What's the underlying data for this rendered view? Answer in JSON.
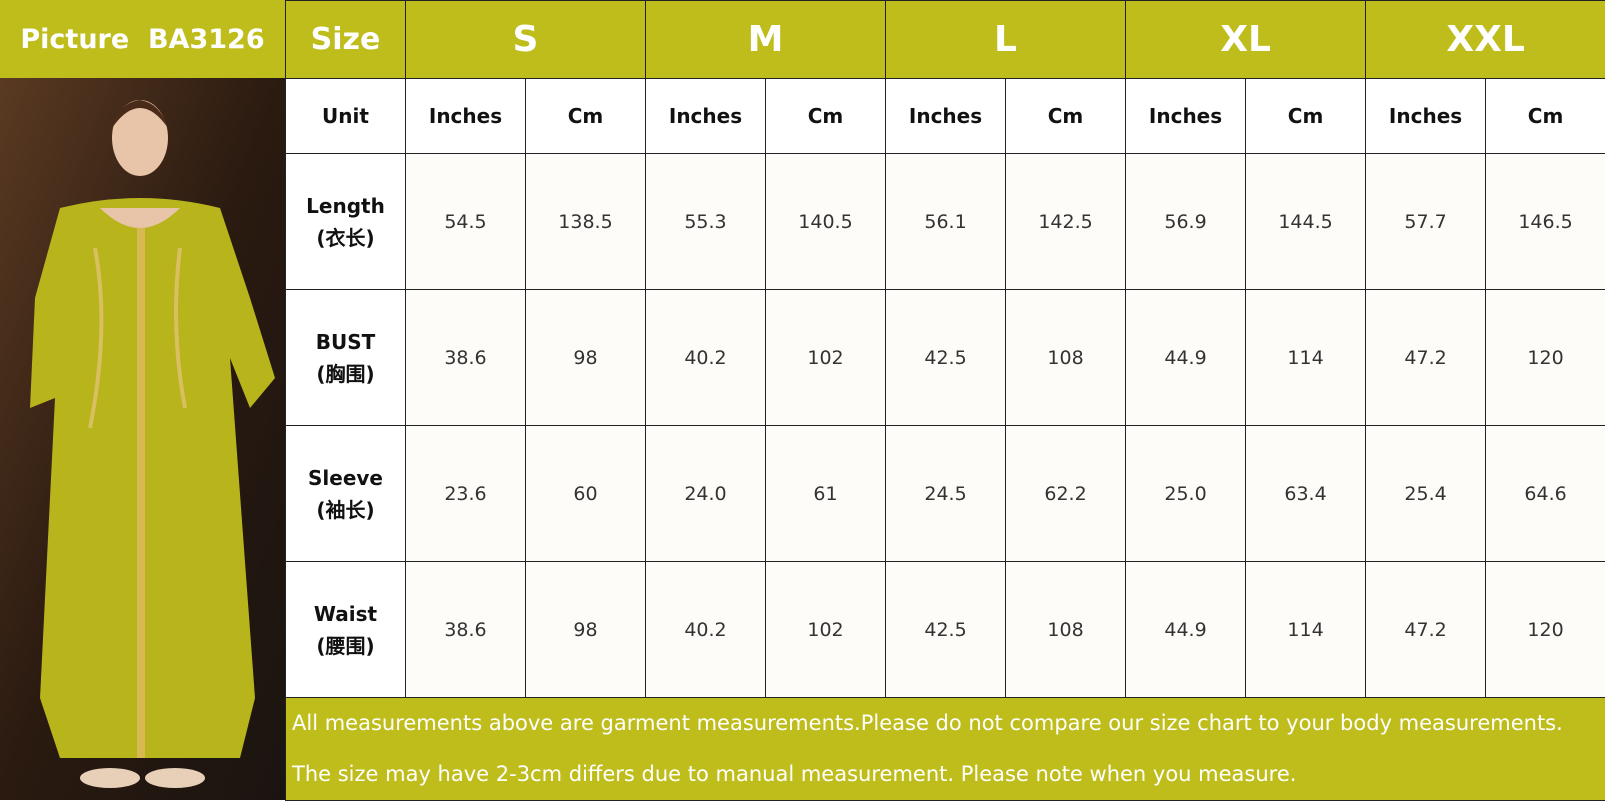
{
  "header": {
    "picture_label": "Picture  BA3126",
    "size_label": "Size",
    "sizes": [
      "S",
      "M",
      "L",
      "XL",
      "XXL"
    ]
  },
  "unit_row": {
    "label": "Unit",
    "units": [
      "Inches",
      "Cm",
      "Inches",
      "Cm",
      "Inches",
      "Cm",
      "Inches",
      "Cm",
      "Inches",
      "Cm"
    ]
  },
  "rows": [
    {
      "label": "Length",
      "label_cn": "(衣长)",
      "values": [
        "54.5",
        "138.5",
        "55.3",
        "140.5",
        "56.1",
        "142.5",
        "56.9",
        "144.5",
        "57.7",
        "146.5"
      ]
    },
    {
      "label": "BUST",
      "label_cn": "(胸围)",
      "values": [
        "38.6",
        "98",
        "40.2",
        "102",
        "42.5",
        "108",
        "44.9",
        "114",
        "47.2",
        "120"
      ]
    },
    {
      "label": "Sleeve",
      "label_cn": "(袖长)",
      "values": [
        "23.6",
        "60",
        "24.0",
        "61",
        "24.5",
        "62.2",
        "25.0",
        "63.4",
        "25.4",
        "64.6"
      ]
    },
    {
      "label": "Waist",
      "label_cn": "(腰围)",
      "values": [
        "38.6",
        "98",
        "40.2",
        "102",
        "42.5",
        "108",
        "44.9",
        "114",
        "47.2",
        "120"
      ]
    }
  ],
  "notes": [
    "All measurements above are garment measurements.Please do not compare our size chart to your body measurements.",
    "The size may have 2-3cm differs due to manual measurement. Please note when you measure."
  ]
}
